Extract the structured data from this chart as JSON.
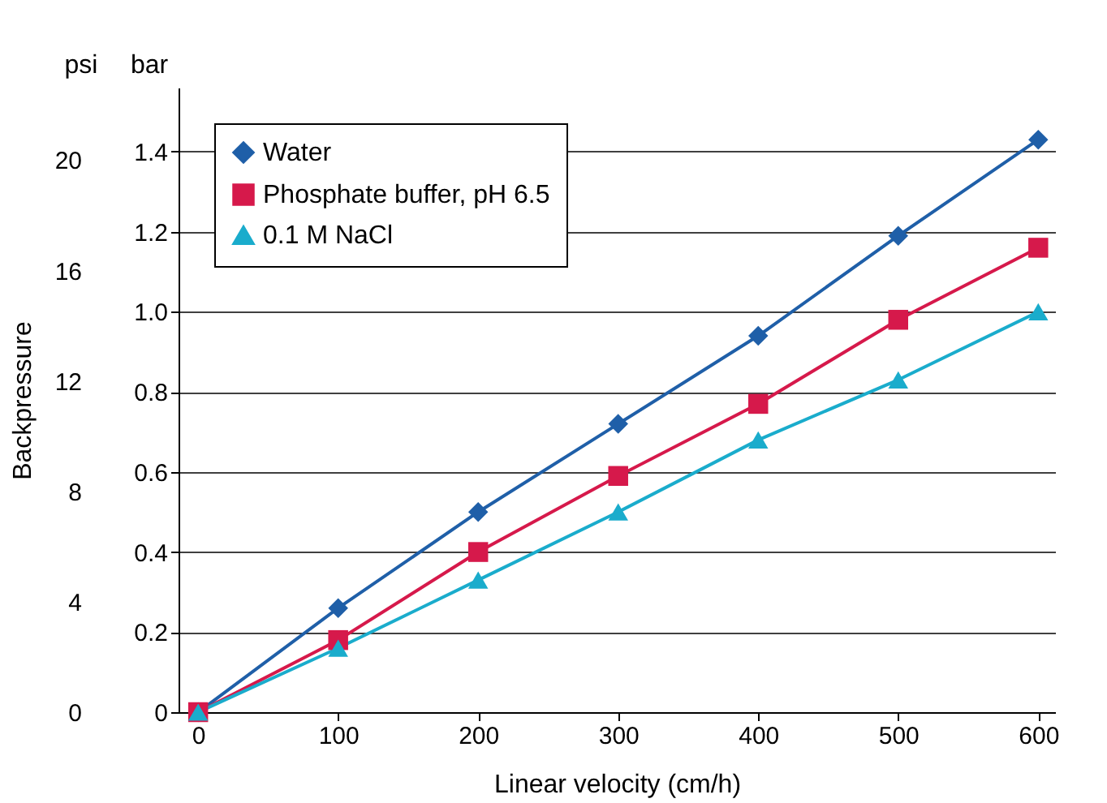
{
  "chart_data": {
    "type": "line",
    "xlabel": "Linear velocity (cm/h)",
    "ylabel": "Backpressure",
    "annotations": [
      "psi",
      "bar"
    ],
    "x": [
      0,
      100,
      200,
      300,
      400,
      500,
      600
    ],
    "series": [
      {
        "name": "Water",
        "color": "#1f5fa8",
        "marker": "diamond",
        "axis": "y2",
        "values": [
          0,
          0.26,
          0.5,
          0.72,
          0.94,
          1.19,
          1.43
        ]
      },
      {
        "name": "Phosphate buffer, pH 6.5",
        "color": "#d6194b",
        "marker": "square",
        "axis": "y2",
        "values": [
          0,
          0.18,
          0.4,
          0.59,
          0.77,
          0.98,
          1.16
        ]
      },
      {
        "name": "0.1 M NaCl",
        "color": "#1aaccc",
        "marker": "triangle",
        "axis": "y2",
        "values": [
          0,
          0.16,
          0.33,
          0.5,
          0.68,
          0.83,
          1.0
        ]
      }
    ],
    "xlim": [
      -14,
      612
    ],
    "xticks": [
      0,
      100,
      200,
      300,
      400,
      500,
      600
    ],
    "ylim": [
      0,
      22.63
    ],
    "yticks": [
      0,
      4,
      8,
      12,
      16,
      20
    ],
    "y2lim": [
      0,
      1.56
    ],
    "y2ticks": [
      {
        "value": 0,
        "label": "0"
      },
      0.2,
      0.4,
      0.6,
      0.8,
      {
        "value": 1,
        "label": "1.0"
      },
      1.2,
      1.4
    ],
    "grid": "y2",
    "legend": "top left",
    "line_style": "solid"
  }
}
